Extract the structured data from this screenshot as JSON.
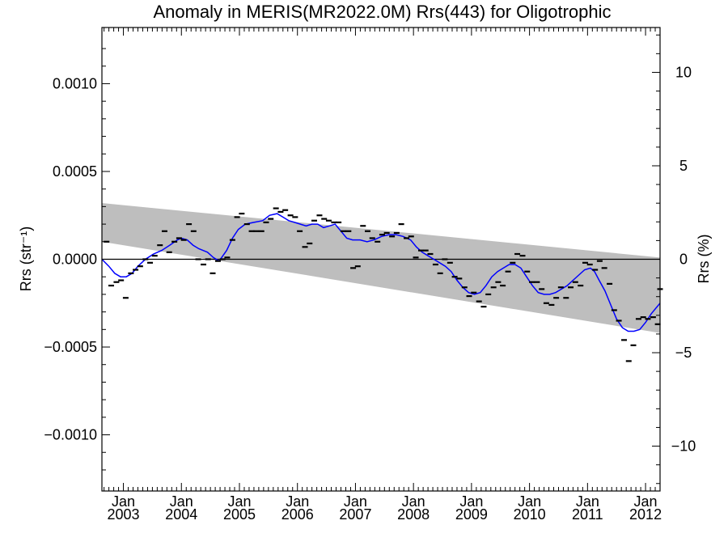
{
  "chart_data": {
    "type": "line",
    "title": "Anomaly in MERIS(MR2022.0M) Rrs(443) for Oligotrophic",
    "ylabel_left": "Rrs (str⁻¹)",
    "ylabel_right": "Rrs (%)",
    "xlim": [
      2002.63,
      2012.25
    ],
    "ylim": [
      -0.00132,
      0.00132
    ],
    "ylim_right": [
      -12.4,
      12.4
    ],
    "left_ticks": [
      {
        "value": 0.001,
        "label": "0.0010"
      },
      {
        "value": 0.0005,
        "label": "0.0005"
      },
      {
        "value": 0.0,
        "label": "0.0000"
      },
      {
        "value": -0.0005,
        "label": "−0.0005"
      },
      {
        "value": -0.001,
        "label": "−0.0010"
      }
    ],
    "right_ticks": [
      {
        "value": 10,
        "label": "10"
      },
      {
        "value": 5,
        "label": "5"
      },
      {
        "value": 0,
        "label": "0"
      },
      {
        "value": -5,
        "label": "−5"
      },
      {
        "value": -10,
        "label": "−10"
      }
    ],
    "x_ticks": [
      {
        "value": 2003,
        "label": "Jan",
        "year": "2003"
      },
      {
        "value": 2004,
        "label": "Jan",
        "year": "2004"
      },
      {
        "value": 2005,
        "label": "Jan",
        "year": "2005"
      },
      {
        "value": 2006,
        "label": "Jan",
        "year": "2006"
      },
      {
        "value": 2007,
        "label": "Jan",
        "year": "2007"
      },
      {
        "value": 2008,
        "label": "Jan",
        "year": "2008"
      },
      {
        "value": 2009,
        "label": "Jan",
        "year": "2009"
      },
      {
        "value": 2010,
        "label": "Jan",
        "year": "2010"
      },
      {
        "value": 2011,
        "label": "Jan",
        "year": "2011"
      },
      {
        "value": 2012,
        "label": "Jan",
        "year": "2012"
      }
    ],
    "grid": false,
    "zero_line": 0,
    "band": {
      "color": "#bebebe",
      "upper": [
        [
          2002.63,
          0.00032
        ],
        [
          2012.25,
          1e-05
        ]
      ],
      "lower": [
        [
          2002.63,
          0.0001
        ],
        [
          2012.25,
          -0.00042
        ]
      ]
    },
    "series": [
      {
        "kind": "monthly_points",
        "color": "#000000",
        "points": [
          [
            2002.71,
            0.0001
          ],
          [
            2002.79,
            -0.00015
          ],
          [
            2002.88,
            -0.00013
          ],
          [
            2002.96,
            -0.00012
          ],
          [
            2003.04,
            -0.00022
          ],
          [
            2003.13,
            -8e-05
          ],
          [
            2003.21,
            -6e-05
          ],
          [
            2003.29,
            -4e-05
          ],
          [
            2003.38,
            0.0
          ],
          [
            2003.46,
            -2e-05
          ],
          [
            2003.54,
            2e-05
          ],
          [
            2003.63,
            8e-05
          ],
          [
            2003.71,
            0.00016
          ],
          [
            2003.79,
            4e-05
          ],
          [
            2003.88,
            0.0001
          ],
          [
            2003.96,
            0.00012
          ],
          [
            2004.04,
            0.00011
          ],
          [
            2004.13,
            0.0002
          ],
          [
            2004.21,
            0.00016
          ],
          [
            2004.29,
            0.0
          ],
          [
            2004.38,
            -3e-05
          ],
          [
            2004.46,
            0.0
          ],
          [
            2004.54,
            -8e-05
          ],
          [
            2004.63,
            -1e-05
          ],
          [
            2004.71,
            0.0
          ],
          [
            2004.79,
            1e-05
          ],
          [
            2004.88,
            0.00011
          ],
          [
            2004.96,
            0.00024
          ],
          [
            2005.04,
            0.00026
          ],
          [
            2005.13,
            0.0002
          ],
          [
            2005.21,
            0.00016
          ],
          [
            2005.29,
            0.00016
          ],
          [
            2005.38,
            0.00016
          ],
          [
            2005.46,
            0.00021
          ],
          [
            2005.54,
            0.00023
          ],
          [
            2005.63,
            0.00029
          ],
          [
            2005.71,
            0.00027
          ],
          [
            2005.79,
            0.00028
          ],
          [
            2005.88,
            0.00025
          ],
          [
            2005.96,
            0.00024
          ],
          [
            2006.04,
            0.00016
          ],
          [
            2006.13,
            7e-05
          ],
          [
            2006.21,
            9e-05
          ],
          [
            2006.29,
            0.00022
          ],
          [
            2006.38,
            0.00025
          ],
          [
            2006.46,
            0.00023
          ],
          [
            2006.54,
            0.00022
          ],
          [
            2006.63,
            0.00021
          ],
          [
            2006.71,
            0.00021
          ],
          [
            2006.79,
            0.00016
          ],
          [
            2006.88,
            0.00016
          ],
          [
            2006.96,
            -5e-05
          ],
          [
            2007.04,
            -4e-05
          ],
          [
            2007.13,
            0.00019
          ],
          [
            2007.21,
            0.00016
          ],
          [
            2007.29,
            0.00012
          ],
          [
            2007.38,
            0.0001
          ],
          [
            2007.46,
            0.00014
          ],
          [
            2007.54,
            0.00015
          ],
          [
            2007.63,
            0.00013
          ],
          [
            2007.71,
            0.00015
          ],
          [
            2007.79,
            0.0002
          ],
          [
            2007.88,
            0.00012
          ],
          [
            2007.96,
            0.00013
          ],
          [
            2008.04,
            1e-05
          ],
          [
            2008.13,
            5e-05
          ],
          [
            2008.21,
            5e-05
          ],
          [
            2008.29,
            3e-05
          ],
          [
            2008.38,
            -3e-05
          ],
          [
            2008.46,
            -8e-05
          ],
          [
            2008.54,
            0.0
          ],
          [
            2008.63,
            -2e-05
          ],
          [
            2008.71,
            -0.0001
          ],
          [
            2008.79,
            -0.00011
          ],
          [
            2008.88,
            -0.00016
          ],
          [
            2008.96,
            -0.00021
          ],
          [
            2009.04,
            -0.00019
          ],
          [
            2009.13,
            -0.00024
          ],
          [
            2009.21,
            -0.00027
          ],
          [
            2009.29,
            -0.0002
          ],
          [
            2009.38,
            -0.00016
          ],
          [
            2009.46,
            -0.00013
          ],
          [
            2009.54,
            -0.00015
          ],
          [
            2009.63,
            -7e-05
          ],
          [
            2009.71,
            -2e-05
          ],
          [
            2009.79,
            3e-05
          ],
          [
            2009.88,
            2e-05
          ],
          [
            2009.96,
            -7e-05
          ],
          [
            2010.04,
            -0.00013
          ],
          [
            2010.13,
            -0.00013
          ],
          [
            2010.21,
            -0.00017
          ],
          [
            2010.29,
            -0.00025
          ],
          [
            2010.38,
            -0.00026
          ],
          [
            2010.46,
            -0.00022
          ],
          [
            2010.54,
            -0.00016
          ],
          [
            2010.63,
            -0.00022
          ],
          [
            2010.71,
            -0.00016
          ],
          [
            2010.79,
            -0.00013
          ],
          [
            2010.88,
            -0.00015
          ],
          [
            2010.96,
            -2e-05
          ],
          [
            2011.04,
            -3e-05
          ],
          [
            2011.13,
            -6e-05
          ],
          [
            2011.21,
            -1e-05
          ],
          [
            2011.29,
            -5e-05
          ],
          [
            2011.38,
            -0.00014
          ],
          [
            2011.46,
            -0.00029
          ],
          [
            2011.54,
            -0.00035
          ],
          [
            2011.63,
            -0.00046
          ],
          [
            2011.71,
            -0.00058
          ],
          [
            2011.79,
            -0.00049
          ],
          [
            2011.88,
            -0.00034
          ],
          [
            2011.96,
            -0.00033
          ],
          [
            2012.04,
            -0.00034
          ],
          [
            2012.13,
            -0.00033
          ],
          [
            2012.21,
            -0.00037
          ],
          [
            2012.25,
            -0.00017
          ]
        ]
      },
      {
        "kind": "smoothed_line",
        "color": "#0000ff",
        "points": [
          [
            2002.63,
            0.0
          ],
          [
            2002.75,
            -4e-05
          ],
          [
            2002.85,
            -8e-05
          ],
          [
            2002.95,
            -0.0001
          ],
          [
            2003.05,
            -0.0001
          ],
          [
            2003.15,
            -8e-05
          ],
          [
            2003.25,
            -4e-05
          ],
          [
            2003.38,
            0.0
          ],
          [
            2003.52,
            3e-05
          ],
          [
            2003.66,
            5e-05
          ],
          [
            2003.8,
            8e-05
          ],
          [
            2003.93,
            0.00011
          ],
          [
            2004.0,
            0.00012
          ],
          [
            2004.1,
            0.00011
          ],
          [
            2004.2,
            8e-05
          ],
          [
            2004.3,
            6e-05
          ],
          [
            2004.45,
            4e-05
          ],
          [
            2004.55,
            1e-05
          ],
          [
            2004.65,
            -1e-05
          ],
          [
            2004.78,
            5e-05
          ],
          [
            2004.88,
            0.00012
          ],
          [
            2004.98,
            0.00017
          ],
          [
            2005.1,
            0.0002
          ],
          [
            2005.25,
            0.00021
          ],
          [
            2005.4,
            0.00022
          ],
          [
            2005.52,
            0.00025
          ],
          [
            2005.65,
            0.00026
          ],
          [
            2005.75,
            0.00024
          ],
          [
            2005.85,
            0.00022
          ],
          [
            2005.95,
            0.00021
          ],
          [
            2006.05,
            0.0002
          ],
          [
            2006.15,
            0.00019
          ],
          [
            2006.25,
            0.0002
          ],
          [
            2006.35,
            0.0002
          ],
          [
            2006.45,
            0.00018
          ],
          [
            2006.55,
            0.00019
          ],
          [
            2006.65,
            0.0002
          ],
          [
            2006.75,
            0.00016
          ],
          [
            2006.85,
            0.00012
          ],
          [
            2006.95,
            0.00011
          ],
          [
            2007.08,
            0.00011
          ],
          [
            2007.2,
            0.0001
          ],
          [
            2007.32,
            0.00011
          ],
          [
            2007.45,
            0.00013
          ],
          [
            2007.58,
            0.00014
          ],
          [
            2007.7,
            0.00014
          ],
          [
            2007.82,
            0.00013
          ],
          [
            2007.95,
            0.00011
          ],
          [
            2008.05,
            7e-05
          ],
          [
            2008.15,
            4e-05
          ],
          [
            2008.25,
            2e-05
          ],
          [
            2008.35,
            0.0
          ],
          [
            2008.45,
            -2e-05
          ],
          [
            2008.55,
            -4e-05
          ],
          [
            2008.65,
            -7e-05
          ],
          [
            2008.75,
            -0.00012
          ],
          [
            2008.85,
            -0.00016
          ],
          [
            2008.95,
            -0.00019
          ],
          [
            2009.05,
            -0.0002
          ],
          [
            2009.15,
            -0.00019
          ],
          [
            2009.25,
            -0.00015
          ],
          [
            2009.35,
            -0.0001
          ],
          [
            2009.45,
            -7e-05
          ],
          [
            2009.55,
            -5e-05
          ],
          [
            2009.65,
            -3e-05
          ],
          [
            2009.75,
            -3e-05
          ],
          [
            2009.85,
            -5e-05
          ],
          [
            2009.95,
            -0.0001
          ],
          [
            2010.05,
            -0.00015
          ],
          [
            2010.15,
            -0.00019
          ],
          [
            2010.25,
            -0.0002
          ],
          [
            2010.35,
            -0.0002
          ],
          [
            2010.45,
            -0.00019
          ],
          [
            2010.55,
            -0.00017
          ],
          [
            2010.65,
            -0.00015
          ],
          [
            2010.75,
            -0.00012
          ],
          [
            2010.85,
            -9e-05
          ],
          [
            2010.95,
            -6e-05
          ],
          [
            2011.05,
            -5e-05
          ],
          [
            2011.12,
            -7e-05
          ],
          [
            2011.2,
            -0.00012
          ],
          [
            2011.3,
            -0.00018
          ],
          [
            2011.4,
            -0.00026
          ],
          [
            2011.5,
            -0.00034
          ],
          [
            2011.6,
            -0.00039
          ],
          [
            2011.7,
            -0.00041
          ],
          [
            2011.8,
            -0.00041
          ],
          [
            2011.9,
            -0.0004
          ],
          [
            2012.0,
            -0.00036
          ],
          [
            2012.1,
            -0.00031
          ],
          [
            2012.2,
            -0.00027
          ],
          [
            2012.25,
            -0.00025
          ]
        ]
      }
    ]
  }
}
